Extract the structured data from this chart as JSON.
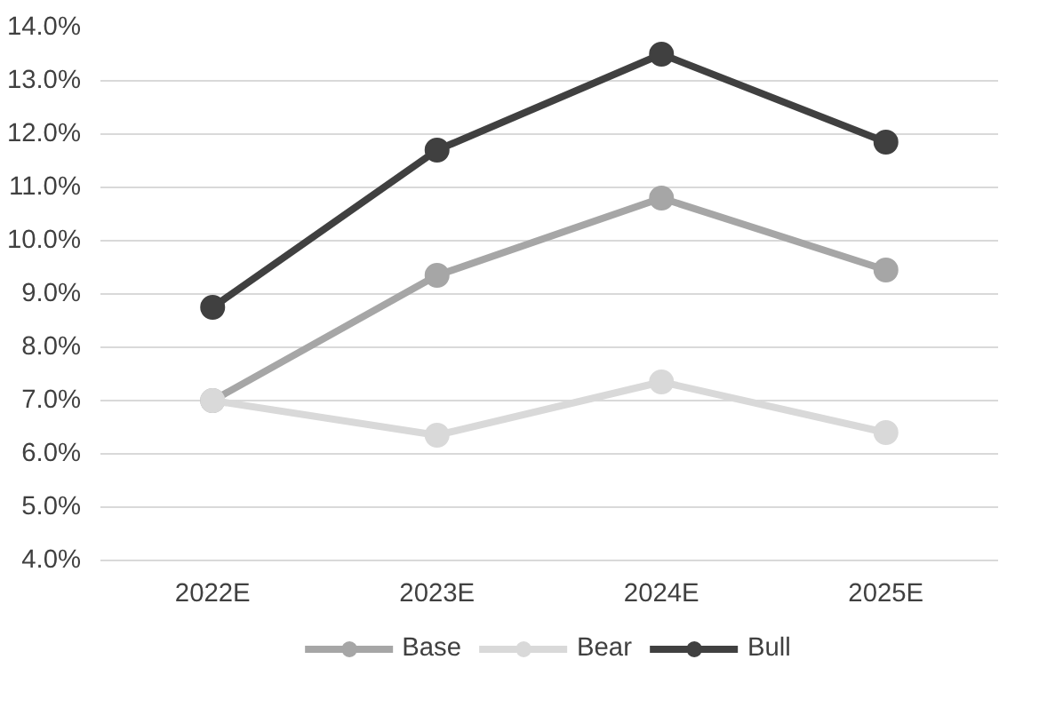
{
  "chart_data": {
    "type": "line",
    "categories": [
      "2022E",
      "2023E",
      "2024E",
      "2025E"
    ],
    "series": [
      {
        "name": "Base",
        "color": "#a6a6a6",
        "values": [
          7.0,
          9.35,
          10.8,
          9.45
        ]
      },
      {
        "name": "Bear",
        "color": "#d9d9d9",
        "values": [
          7.0,
          6.35,
          7.35,
          6.4
        ]
      },
      {
        "name": "Bull",
        "color": "#404040",
        "values": [
          8.75,
          11.7,
          13.5,
          11.85
        ]
      }
    ],
    "ylim": [
      4.0,
      14.0
    ],
    "yticks": [
      {
        "value": 4,
        "label": "4.0%"
      },
      {
        "value": 5,
        "label": "5.0%"
      },
      {
        "value": 6,
        "label": "6.0%"
      },
      {
        "value": 7,
        "label": "7.0%"
      },
      {
        "value": 8,
        "label": "8.0%"
      },
      {
        "value": 9,
        "label": "9.0%"
      },
      {
        "value": 10,
        "label": "10.0%"
      },
      {
        "value": 11,
        "label": "11.0%"
      },
      {
        "value": 12,
        "label": "12.0%"
      },
      {
        "value": 13,
        "label": "13.0%"
      },
      {
        "value": 14,
        "label": "14.0%"
      }
    ],
    "grid": "y",
    "legend": "bottom",
    "marker": "circle",
    "line_style": "solid"
  }
}
